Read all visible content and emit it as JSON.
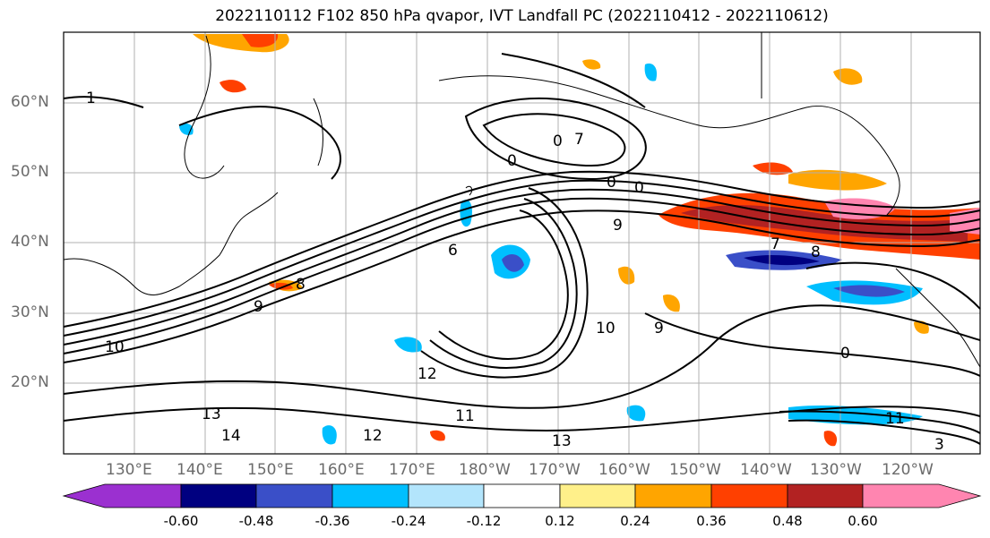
{
  "title": "2022110112 F102 850 hPa qvapor, IVT Landfall PC (2022110412 - 2022110612)",
  "map": {
    "lat_labels": [
      "60°N",
      "50°N",
      "40°N",
      "30°N",
      "20°N"
    ],
    "lon_labels": [
      "130°E",
      "140°E",
      "150°E",
      "160°E",
      "170°E",
      "180°W",
      "170°W",
      "160°W",
      "150°W",
      "140°W",
      "130°W",
      "120°W"
    ],
    "contour_labels": [
      "1",
      "0",
      "0",
      "0",
      "0",
      "9",
      "8",
      "7",
      "8",
      "6",
      "9",
      "10",
      "10",
      "12",
      "11",
      "12",
      "13",
      "13",
      "14",
      "9",
      "11",
      "3",
      "7",
      "0"
    ]
  },
  "colorbar": {
    "tick_labels": [
      "-0.60",
      "-0.48",
      "-0.36",
      "-0.24",
      "-0.12",
      "0.12",
      "0.24",
      "0.36",
      "0.48",
      "0.60"
    ],
    "colors": [
      "#9b30d0",
      "#000080",
      "#3a4fc8",
      "#00bfff",
      "#b3e5fc",
      "#ffffff",
      "#fff08a",
      "#ffa500",
      "#ff4000",
      "#b22222",
      "#ff85b0"
    ]
  }
}
